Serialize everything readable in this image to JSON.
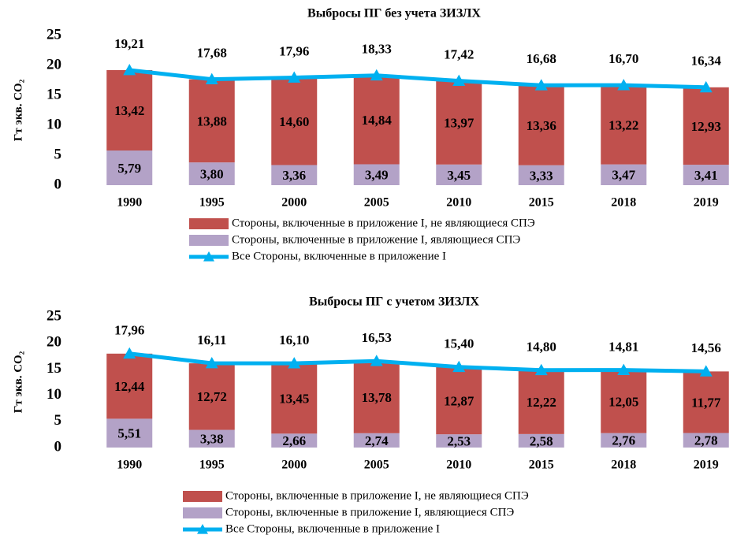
{
  "chart_data": [
    {
      "type": "bar",
      "stacked": true,
      "title": "Выбросы ПГ без учета ЗИЗЛХ",
      "ylabel": "Гт экв. CO₂",
      "categories": [
        "1990",
        "1995",
        "2000",
        "2005",
        "2010",
        "2015",
        "2018",
        "2019"
      ],
      "ylim": [
        0,
        25
      ],
      "yticks": [
        0,
        5,
        10,
        15,
        20,
        25
      ],
      "series": [
        {
          "name": "Стороны, включенные в приложение I, являющиеся СПЭ",
          "type": "bar",
          "color": "#b3a2c7",
          "values": [
            5.79,
            3.8,
            3.36,
            3.49,
            3.45,
            3.33,
            3.47,
            3.41
          ],
          "value_labels": [
            "5,79",
            "3,80",
            "3,36",
            "3,49",
            "3,45",
            "3,33",
            "3,47",
            "3,41"
          ]
        },
        {
          "name": "Стороны, включенные в приложение I, не являющиеся СПЭ",
          "type": "bar",
          "color": "#c0504d",
          "values": [
            13.42,
            13.88,
            14.6,
            14.84,
            13.97,
            13.36,
            13.22,
            12.93
          ],
          "value_labels": [
            "13,42",
            "13,88",
            "14,60",
            "14,84",
            "13,97",
            "13,36",
            "13,22",
            "12,93"
          ]
        },
        {
          "name": "Все Стороны, включенные в приложение I",
          "type": "line",
          "color": "#00b0f0",
          "values": [
            19.21,
            17.68,
            17.96,
            18.33,
            17.42,
            16.68,
            16.7,
            16.34
          ],
          "value_labels": [
            "19,21",
            "17,68",
            "17,96",
            "18,33",
            "17,42",
            "16,68",
            "16,70",
            "16,34"
          ]
        }
      ]
    },
    {
      "type": "bar",
      "stacked": true,
      "title": "Выбросы ПГ с учетом ЗИЗЛХ",
      "ylabel": "Гт экв. CO₂",
      "categories": [
        "1990",
        "1995",
        "2000",
        "2005",
        "2010",
        "2015",
        "2018",
        "2019"
      ],
      "ylim": [
        0,
        25
      ],
      "yticks": [
        0,
        5,
        10,
        15,
        20,
        25
      ],
      "series": [
        {
          "name": "Стороны, включенные в приложение I, являющиеся СПЭ",
          "type": "bar",
          "color": "#b3a2c7",
          "values": [
            5.51,
            3.38,
            2.66,
            2.74,
            2.53,
            2.58,
            2.76,
            2.78
          ],
          "value_labels": [
            "5,51",
            "3,38",
            "2,66",
            "2,74",
            "2,53",
            "2,58",
            "2,76",
            "2,78"
          ]
        },
        {
          "name": "Стороны, включенные в приложение I, не являющиеся СПЭ",
          "type": "bar",
          "color": "#c0504d",
          "values": [
            12.44,
            12.72,
            13.45,
            13.78,
            12.87,
            12.22,
            12.05,
            11.77
          ],
          "value_labels": [
            "12,44",
            "12,72",
            "13,45",
            "13,78",
            "12,87",
            "12,22",
            "12,05",
            "11,77"
          ]
        },
        {
          "name": "Все Стороны, включенные в приложение I",
          "type": "line",
          "color": "#00b0f0",
          "values": [
            17.96,
            16.11,
            16.1,
            16.53,
            15.4,
            14.8,
            14.81,
            14.56
          ],
          "value_labels": [
            "17,96",
            "16,11",
            "16,10",
            "16,53",
            "15,40",
            "14,80",
            "14,81",
            "14,56"
          ]
        }
      ]
    }
  ]
}
